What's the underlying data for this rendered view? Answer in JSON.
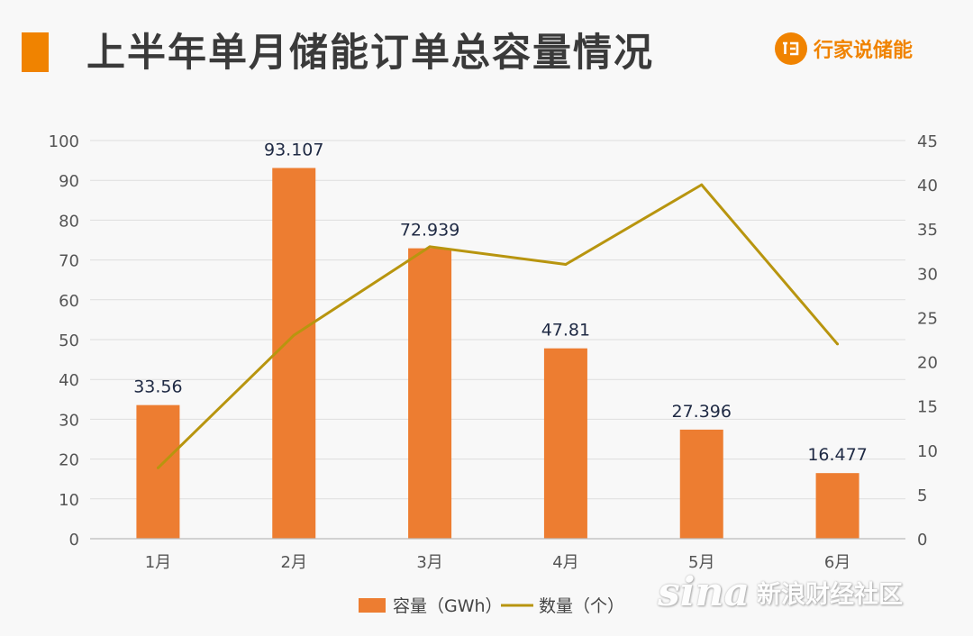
{
  "header": {
    "title": "上半年单月储能订单总容量情况",
    "brand_name": "行家说储能",
    "brand_icon": "xjs-logo-icon",
    "accent_color": "#f08300"
  },
  "watermark": {
    "logo": "sina",
    "text": "新浪财经社区"
  },
  "chart_data": {
    "type": "bar",
    "categories": [
      "1月",
      "2月",
      "3月",
      "4月",
      "5月",
      "6月"
    ],
    "series": [
      {
        "name": "容量（GWh）",
        "type": "bar",
        "axis": "left",
        "color": "#ed7d31",
        "values": [
          33.56,
          93.107,
          72.939,
          47.81,
          27.396,
          16.477
        ],
        "labels": [
          "33.56",
          "93.107",
          "72.939",
          "47.81",
          "27.396",
          "16.477"
        ]
      },
      {
        "name": "数量（个）",
        "type": "line",
        "axis": "right",
        "color": "#b8950f",
        "values": [
          8,
          23,
          33,
          31,
          40,
          22
        ]
      }
    ],
    "y_left": {
      "min": 0,
      "max": 100,
      "step": 10
    },
    "y_right": {
      "min": 0,
      "max": 45,
      "step": 5
    },
    "grid": true,
    "legend_position": "bottom"
  }
}
